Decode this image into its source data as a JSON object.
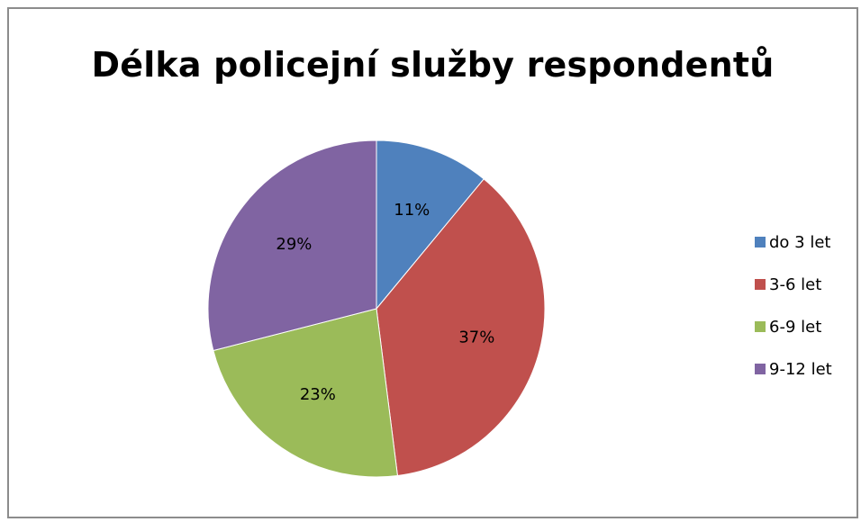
{
  "chart_data": {
    "type": "pie",
    "title": "Délka policejní služby respondentů",
    "categories": [
      "do 3 let",
      "3-6 let",
      "6-9 let",
      "9-12 let"
    ],
    "values": [
      11,
      37,
      23,
      29
    ],
    "data_labels": [
      "11%",
      "37%",
      "23%",
      "29%"
    ],
    "colors": [
      "#4f81bd",
      "#c0504d",
      "#9bbb59",
      "#8064a2"
    ],
    "legend_position": "right"
  }
}
